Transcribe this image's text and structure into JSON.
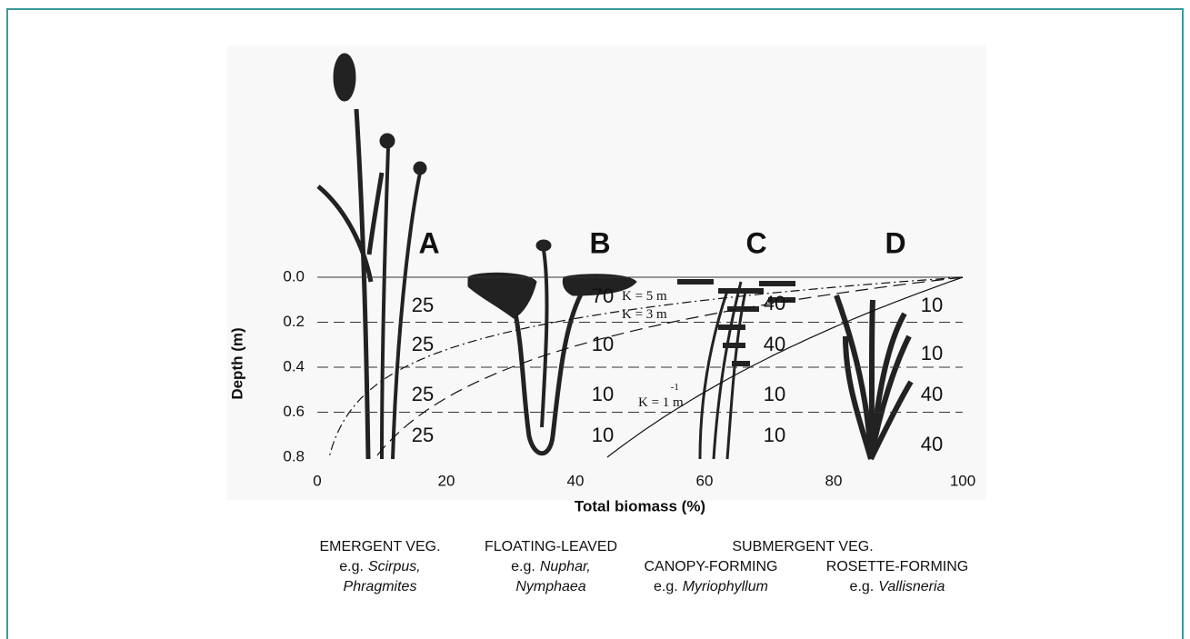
{
  "chart_data": {
    "type": "depth-profile",
    "xlabel": "Total biomass (%)",
    "ylabel": "Depth (m)",
    "xlim": [
      0,
      100
    ],
    "ylim": [
      0,
      0.8
    ],
    "xticks": [
      0,
      20,
      40,
      60,
      80,
      100
    ],
    "yticks": [
      {
        "value": 0,
        "label": "0.0"
      },
      {
        "value": 0.2,
        "label": "0.2"
      },
      {
        "value": 0.4,
        "label": "0.4"
      },
      {
        "value": 0.6,
        "label": "0.6"
      },
      {
        "value": 0.8,
        "label": "0.8"
      }
    ],
    "grid": true,
    "series": [
      {
        "name": "A",
        "values": [
          25,
          25,
          25,
          25
        ]
      },
      {
        "name": "B",
        "values": [
          70,
          10,
          10,
          10
        ]
      },
      {
        "name": "C",
        "values": [
          40,
          40,
          10,
          10
        ]
      },
      {
        "name": "D",
        "values": [
          10,
          10,
          40,
          40
        ]
      }
    ],
    "curves": [
      {
        "label": "K = 5 m",
        "k": 5
      },
      {
        "label": "K = 3 m",
        "k": 3
      },
      {
        "label": "K = 1 m",
        "k": 1,
        "superscript": "-1"
      }
    ],
    "groups": [
      {
        "title": "EMERGENT VEG.",
        "prefix": "e.g.",
        "names": [
          "Scirpus,",
          "Phragmites"
        ]
      },
      {
        "title": "FLOATING-LEAVED",
        "prefix": "e.g.",
        "names": [
          "Nuphar,",
          "Nymphaea"
        ]
      },
      {
        "title": "CANOPY-FORMING",
        "prefix": "e.g.",
        "names": [
          "Myriophyllum"
        ]
      },
      {
        "title": "ROSETTE-FORMING",
        "prefix": "e.g.",
        "names": [
          "Vallisneria"
        ]
      }
    ],
    "supergroup": "SUBMERGENT VEG."
  }
}
